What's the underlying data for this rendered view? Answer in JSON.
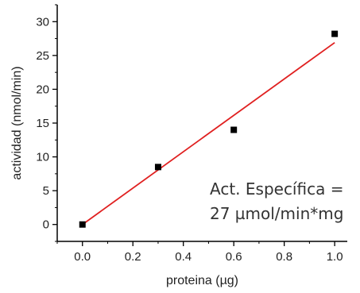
{
  "chart_data": {
    "type": "scatter",
    "xlabel": "proteina (µg)",
    "ylabel": "actividad (nmol/min)",
    "xlim": [
      -0.1,
      1.05
    ],
    "ylim": [
      -2.5,
      32.5
    ],
    "xticks": [
      0.0,
      0.2,
      0.4,
      0.6,
      0.8,
      1.0
    ],
    "xtick_labels": [
      "0.0",
      "0.2",
      "0.4",
      "0.6",
      "0.8",
      "1.0"
    ],
    "yticks": [
      0,
      5,
      10,
      15,
      20,
      25,
      30
    ],
    "ytick_labels": [
      "0",
      "5",
      "10",
      "15",
      "20",
      "25",
      "30"
    ],
    "grid": false,
    "series": [
      {
        "type": "scatter",
        "marker": "square",
        "color": "#000000",
        "points": [
          {
            "x": 0.0,
            "y": 0.0
          },
          {
            "x": 0.3,
            "y": 8.5
          },
          {
            "x": 0.6,
            "y": 14.0
          },
          {
            "x": 1.0,
            "y": 28.2
          }
        ]
      },
      {
        "type": "line",
        "color": "#e02020",
        "points": [
          {
            "x": 0.0,
            "y": 0.0
          },
          {
            "x": 1.0,
            "y": 26.9
          }
        ]
      }
    ],
    "annotation": {
      "line1": "Act. Específica =",
      "line2": "27 µmol/min*mg"
    }
  }
}
